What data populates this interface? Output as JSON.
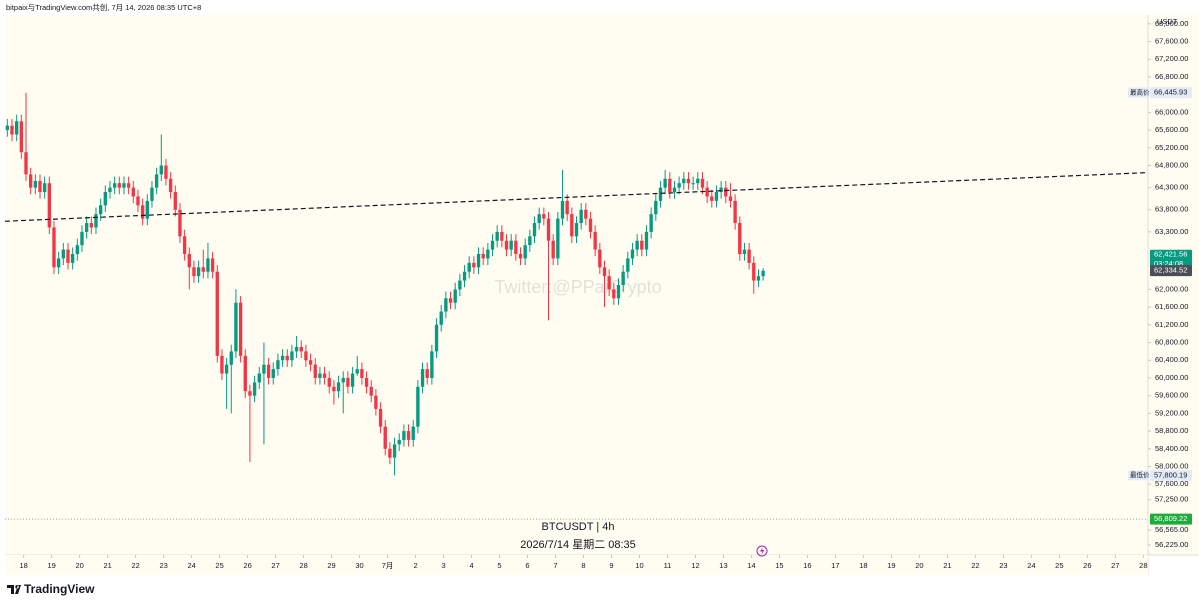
{
  "header": "bitpaix与TradingView.com共创, 7月 14, 2026 08:35 UTC+8",
  "footer": "TradingView",
  "chart_data": {
    "type": "candlestick",
    "currency": "USDT",
    "symbol_label": "BTCUSDT | 4h",
    "date_label": "2026/7/14 星期二 08:35",
    "watermark": "Twitter:@PPaiCrypto",
    "up_color": "#089981",
    "down_color": "#f23645",
    "grid": false,
    "open": [
      65600,
      65700,
      65500,
      65800,
      65100,
      64600,
      64300,
      64450,
      64200,
      64400,
      63400,
      62500,
      62700,
      62900,
      62600,
      62800,
      63000,
      63300,
      63500,
      63400,
      63700,
      63900,
      64200,
      64300,
      64400,
      64300,
      64400,
      64300,
      64100,
      63900,
      63600,
      64000,
      64300,
      64600,
      64800,
      64500,
      64200,
      63800,
      63200,
      62800,
      62500,
      62300,
      62500,
      62400,
      62700,
      62400,
      60500,
      60100,
      60300,
      60600,
      61700,
      60500,
      59700,
      59600,
      59900,
      60100,
      60300,
      60000,
      60200,
      60400,
      60500,
      60400,
      60600,
      60700,
      60600,
      60400,
      60300,
      60000,
      60100,
      60000,
      59800,
      59700,
      59900,
      60000,
      59800,
      60100,
      60200,
      60000,
      59800,
      59600,
      59300,
      58900,
      58400,
      58200,
      58500,
      58600,
      58800,
      58600,
      58900,
      59800,
      60200,
      60000,
      60600,
      61200,
      61500,
      61800,
      61700,
      62000,
      62200,
      62400,
      62600,
      62500,
      62800,
      62700,
      62900,
      63100,
      63300,
      63100,
      62900,
      63100,
      62800,
      62700,
      63000,
      63200,
      63500,
      63700,
      63600,
      63100,
      62700,
      63600,
      64000,
      63700,
      63200,
      63500,
      63800,
      63600,
      63300,
      62900,
      62500,
      62300,
      62000,
      61800,
      62100,
      62400,
      62700,
      62900,
      63100,
      62900,
      63300,
      63700,
      64000,
      64300,
      64500,
      64200,
      64300,
      64400,
      64500,
      64400,
      64400,
      64500,
      64300,
      64100,
      64000,
      64200,
      64300,
      64100,
      64000,
      63500,
      62800,
      62900,
      62600,
      62200,
      62300
    ],
    "high": [
      65850,
      65850,
      65950,
      65950,
      66445.93,
      64750,
      64600,
      64600,
      64550,
      64550,
      63550,
      62850,
      63050,
      63050,
      62950,
      63150,
      63450,
      63650,
      63650,
      63850,
      64050,
      64350,
      64450,
      64550,
      64550,
      64550,
      64550,
      64450,
      64250,
      64050,
      64150,
      64450,
      64750,
      65500,
      64950,
      64650,
      64350,
      63950,
      63350,
      62950,
      62650,
      62650,
      62900,
      63050,
      62850,
      62550,
      60650,
      60450,
      60750,
      62000,
      61850,
      60650,
      59850,
      60050,
      60250,
      60800,
      60450,
      60350,
      60550,
      60650,
      60650,
      60750,
      60950,
      60850,
      60750,
      60550,
      60450,
      60250,
      60250,
      60150,
      59950,
      60050,
      60150,
      60150,
      60250,
      60500,
      60350,
      60150,
      59950,
      59750,
      59450,
      59050,
      58550,
      58650,
      58750,
      58950,
      58950,
      59050,
      59950,
      60350,
      60350,
      60750,
      61350,
      61650,
      61950,
      61950,
      62150,
      62350,
      62550,
      62750,
      62750,
      62950,
      62950,
      63050,
      63250,
      63450,
      63450,
      63250,
      63250,
      63250,
      62950,
      63150,
      63350,
      63650,
      63850,
      63850,
      63750,
      63250,
      63750,
      64700,
      64150,
      63850,
      63650,
      63950,
      63950,
      63750,
      63450,
      63050,
      62650,
      62450,
      62150,
      62250,
      62550,
      62850,
      63050,
      63250,
      63250,
      63450,
      63850,
      64150,
      64450,
      64700,
      64650,
      64450,
      64550,
      64650,
      64650,
      64550,
      64650,
      64650,
      64450,
      64250,
      64350,
      64450,
      64450,
      64400,
      64150,
      63650,
      63050,
      63050,
      62750,
      62450,
      62480
    ],
    "low": [
      65450,
      65350,
      65350,
      64950,
      64450,
      64150,
      64150,
      64050,
      64050,
      63250,
      62350,
      62350,
      62550,
      62450,
      62450,
      62650,
      62850,
      63150,
      63250,
      63250,
      63550,
      63750,
      64050,
      64150,
      64150,
      64150,
      64150,
      63950,
      63750,
      63450,
      63450,
      63850,
      64150,
      64450,
      64350,
      64050,
      63650,
      63050,
      62650,
      62000,
      62150,
      62150,
      62250,
      62250,
      62250,
      60350,
      59950,
      59300,
      59200,
      60450,
      60350,
      59550,
      58100,
      59450,
      59750,
      58500,
      59850,
      59850,
      60050,
      60250,
      60250,
      60250,
      60450,
      60450,
      60250,
      60150,
      59850,
      59850,
      59850,
      59650,
      59400,
      59550,
      59200,
      59650,
      59650,
      60050,
      59850,
      59650,
      59450,
      59150,
      58750,
      58250,
      58050,
      57800.19,
      58350,
      58450,
      58450,
      58450,
      58750,
      59650,
      59850,
      59850,
      60450,
      61050,
      61350,
      61550,
      61550,
      61850,
      62050,
      62250,
      62350,
      62350,
      62550,
      62550,
      62750,
      62950,
      62950,
      62750,
      62750,
      62650,
      62550,
      62550,
      62850,
      63050,
      63350,
      63450,
      61300,
      62550,
      62550,
      63450,
      63550,
      63050,
      63050,
      63350,
      63450,
      63150,
      62750,
      62350,
      61600,
      61850,
      61650,
      61650,
      61950,
      62250,
      62550,
      62750,
      62750,
      62750,
      63150,
      63550,
      63850,
      64150,
      64050,
      64050,
      64150,
      64250,
      64250,
      64250,
      64250,
      64150,
      63950,
      63850,
      63850,
      64050,
      63950,
      63850,
      63350,
      62650,
      62650,
      62450,
      61900,
      62050,
      62200
    ],
    "close": [
      65700,
      65500,
      65800,
      65100,
      64600,
      64300,
      64450,
      64200,
      64400,
      63400,
      62500,
      62700,
      62900,
      62600,
      62800,
      63000,
      63300,
      63500,
      63400,
      63700,
      63900,
      64200,
      64300,
      64400,
      64300,
      64400,
      64300,
      64100,
      63900,
      63600,
      64000,
      64300,
      64600,
      64800,
      64500,
      64200,
      63800,
      63200,
      62800,
      62500,
      62300,
      62500,
      62400,
      62700,
      62400,
      60500,
      60100,
      60300,
      60600,
      61700,
      60500,
      59700,
      59600,
      59900,
      60100,
      60300,
      60000,
      60200,
      60400,
      60500,
      60400,
      60600,
      60700,
      60600,
      60400,
      60300,
      60000,
      60100,
      60000,
      59800,
      59700,
      59900,
      60000,
      59800,
      60100,
      60200,
      60000,
      59800,
      59600,
      59300,
      58900,
      58400,
      58200,
      58500,
      58600,
      58800,
      58600,
      58900,
      59800,
      60200,
      60000,
      60600,
      61200,
      61500,
      61800,
      61700,
      62000,
      62200,
      62400,
      62600,
      62500,
      62800,
      62700,
      62900,
      63100,
      63300,
      63100,
      62900,
      63100,
      62800,
      62700,
      63000,
      63200,
      63500,
      63700,
      63600,
      63100,
      62700,
      63600,
      64000,
      63700,
      63200,
      63500,
      63800,
      63600,
      63300,
      62900,
      62500,
      62300,
      62000,
      61800,
      62100,
      62400,
      62700,
      62900,
      63100,
      62900,
      63300,
      63700,
      64000,
      64300,
      64500,
      64200,
      64300,
      64400,
      64500,
      64400,
      64400,
      64500,
      64300,
      64100,
      64000,
      64200,
      64300,
      64100,
      64000,
      63500,
      62800,
      62900,
      62600,
      62200,
      62300,
      62421.56
    ],
    "xlim": [
      0,
      245
    ],
    "xticks": [
      {
        "value": 4,
        "label": "18"
      },
      {
        "value": 10,
        "label": "19"
      },
      {
        "value": 16,
        "label": "20"
      },
      {
        "value": 22,
        "label": "21"
      },
      {
        "value": 28,
        "label": "22"
      },
      {
        "value": 34,
        "label": "23"
      },
      {
        "value": 40,
        "label": "24"
      },
      {
        "value": 46,
        "label": "25"
      },
      {
        "value": 52,
        "label": "26"
      },
      {
        "value": 58,
        "label": "27"
      },
      {
        "value": 64,
        "label": "28"
      },
      {
        "value": 70,
        "label": "29"
      },
      {
        "value": 76,
        "label": "30"
      },
      {
        "value": 82,
        "label": "7月"
      },
      {
        "value": 88,
        "label": "2"
      },
      {
        "value": 94,
        "label": "3"
      },
      {
        "value": 100,
        "label": "4"
      },
      {
        "value": 106,
        "label": "5"
      },
      {
        "value": 112,
        "label": "6"
      },
      {
        "value": 118,
        "label": "7"
      },
      {
        "value": 124,
        "label": "8"
      },
      {
        "value": 130,
        "label": "9"
      },
      {
        "value": 136,
        "label": "10"
      },
      {
        "value": 142,
        "label": "11"
      },
      {
        "value": 148,
        "label": "12"
      },
      {
        "value": 154,
        "label": "13"
      },
      {
        "value": 160,
        "label": "14"
      },
      {
        "value": 166,
        "label": "15"
      },
      {
        "value": 172,
        "label": "16"
      },
      {
        "value": 178,
        "label": "17"
      },
      {
        "value": 184,
        "label": "18"
      },
      {
        "value": 190,
        "label": "19"
      },
      {
        "value": 196,
        "label": "20"
      },
      {
        "value": 202,
        "label": "21"
      },
      {
        "value": 208,
        "label": "22"
      },
      {
        "value": 214,
        "label": "23"
      },
      {
        "value": 220,
        "label": "24"
      },
      {
        "value": 226,
        "label": "25"
      },
      {
        "value": 232,
        "label": "26"
      },
      {
        "value": 238,
        "label": "27"
      },
      {
        "value": 244,
        "label": "28"
      }
    ],
    "ylim": [
      56000,
      68200
    ],
    "yticks": [
      {
        "value": 68000,
        "label": "68,000.00"
      },
      {
        "value": 67600,
        "label": "67,600.00"
      },
      {
        "value": 67200,
        "label": "67,200.00"
      },
      {
        "value": 66800,
        "label": "66,800.00"
      },
      {
        "value": 66000,
        "label": "66,000.00"
      },
      {
        "value": 65600,
        "label": "65,600.00"
      },
      {
        "value": 65200,
        "label": "65,200.00"
      },
      {
        "value": 64800,
        "label": "64,800.00"
      },
      {
        "value": 64300,
        "label": "64,300.00"
      },
      {
        "value": 63800,
        "label": "63,800.00"
      },
      {
        "value": 63300,
        "label": "63,300.00"
      },
      {
        "value": 62000,
        "label": "62,000.00"
      },
      {
        "value": 61600,
        "label": "61,600.00"
      },
      {
        "value": 61200,
        "label": "61,200.00"
      },
      {
        "value": 60800,
        "label": "60,800.00"
      },
      {
        "value": 60400,
        "label": "60,400.00"
      },
      {
        "value": 60000,
        "label": "60,000.00"
      },
      {
        "value": 59600,
        "label": "59,600.00"
      },
      {
        "value": 59200,
        "label": "59,200.00"
      },
      {
        "value": 58800,
        "label": "58,800.00"
      },
      {
        "value": 58400,
        "label": "58,400.00"
      },
      {
        "value": 58000,
        "label": "58,000.00"
      },
      {
        "value": 57600,
        "label": "57,600.00"
      },
      {
        "value": 57250,
        "label": "57,250.00"
      },
      {
        "value": 56565,
        "label": "56,565.00"
      },
      {
        "value": 56225,
        "label": "56,225.00"
      }
    ],
    "trendline": {
      "x": [
        0,
        245
      ],
      "y": [
        63540,
        64640
      ]
    },
    "price_labels": [
      {
        "tag": "最高价",
        "value": 66445.93,
        "label": "66,445.93",
        "color": "#e4ebf7"
      },
      {
        "tag": "最低价",
        "value": 57800.19,
        "label": "57,800.19",
        "color": "#e4ebf7"
      },
      {
        "value": 62421.56,
        "label": "62,421.56",
        "countdown": "03:24:08",
        "color": "#089981"
      },
      {
        "value": 62334.52,
        "label": "62,334.52",
        "color": "#4a4e57"
      },
      {
        "value": 56809.22,
        "label": "56,809.22",
        "color": "#22ab3c",
        "line": true
      }
    ]
  }
}
